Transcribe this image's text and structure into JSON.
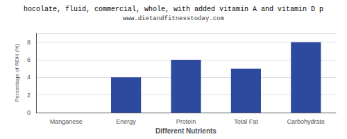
{
  "chart_data": {
    "type": "bar",
    "title": "hocolate, fluid, commercial, whole, with added vitamin A and vitamin D p",
    "subtitle": "www.dietandfitnesstoday.com",
    "categories": [
      "Manganese",
      "Energy",
      "Protein",
      "Total Fat",
      "Carbohydrate"
    ],
    "values": [
      0,
      4,
      6,
      5,
      8
    ],
    "color": "#2e4a9e",
    "xlabel": "Different Nutrients",
    "ylabel": "Percentage of RDH (%)",
    "ylim": [
      0,
      9
    ],
    "yticks": [
      0,
      2,
      4,
      6,
      8
    ],
    "grid": true
  }
}
